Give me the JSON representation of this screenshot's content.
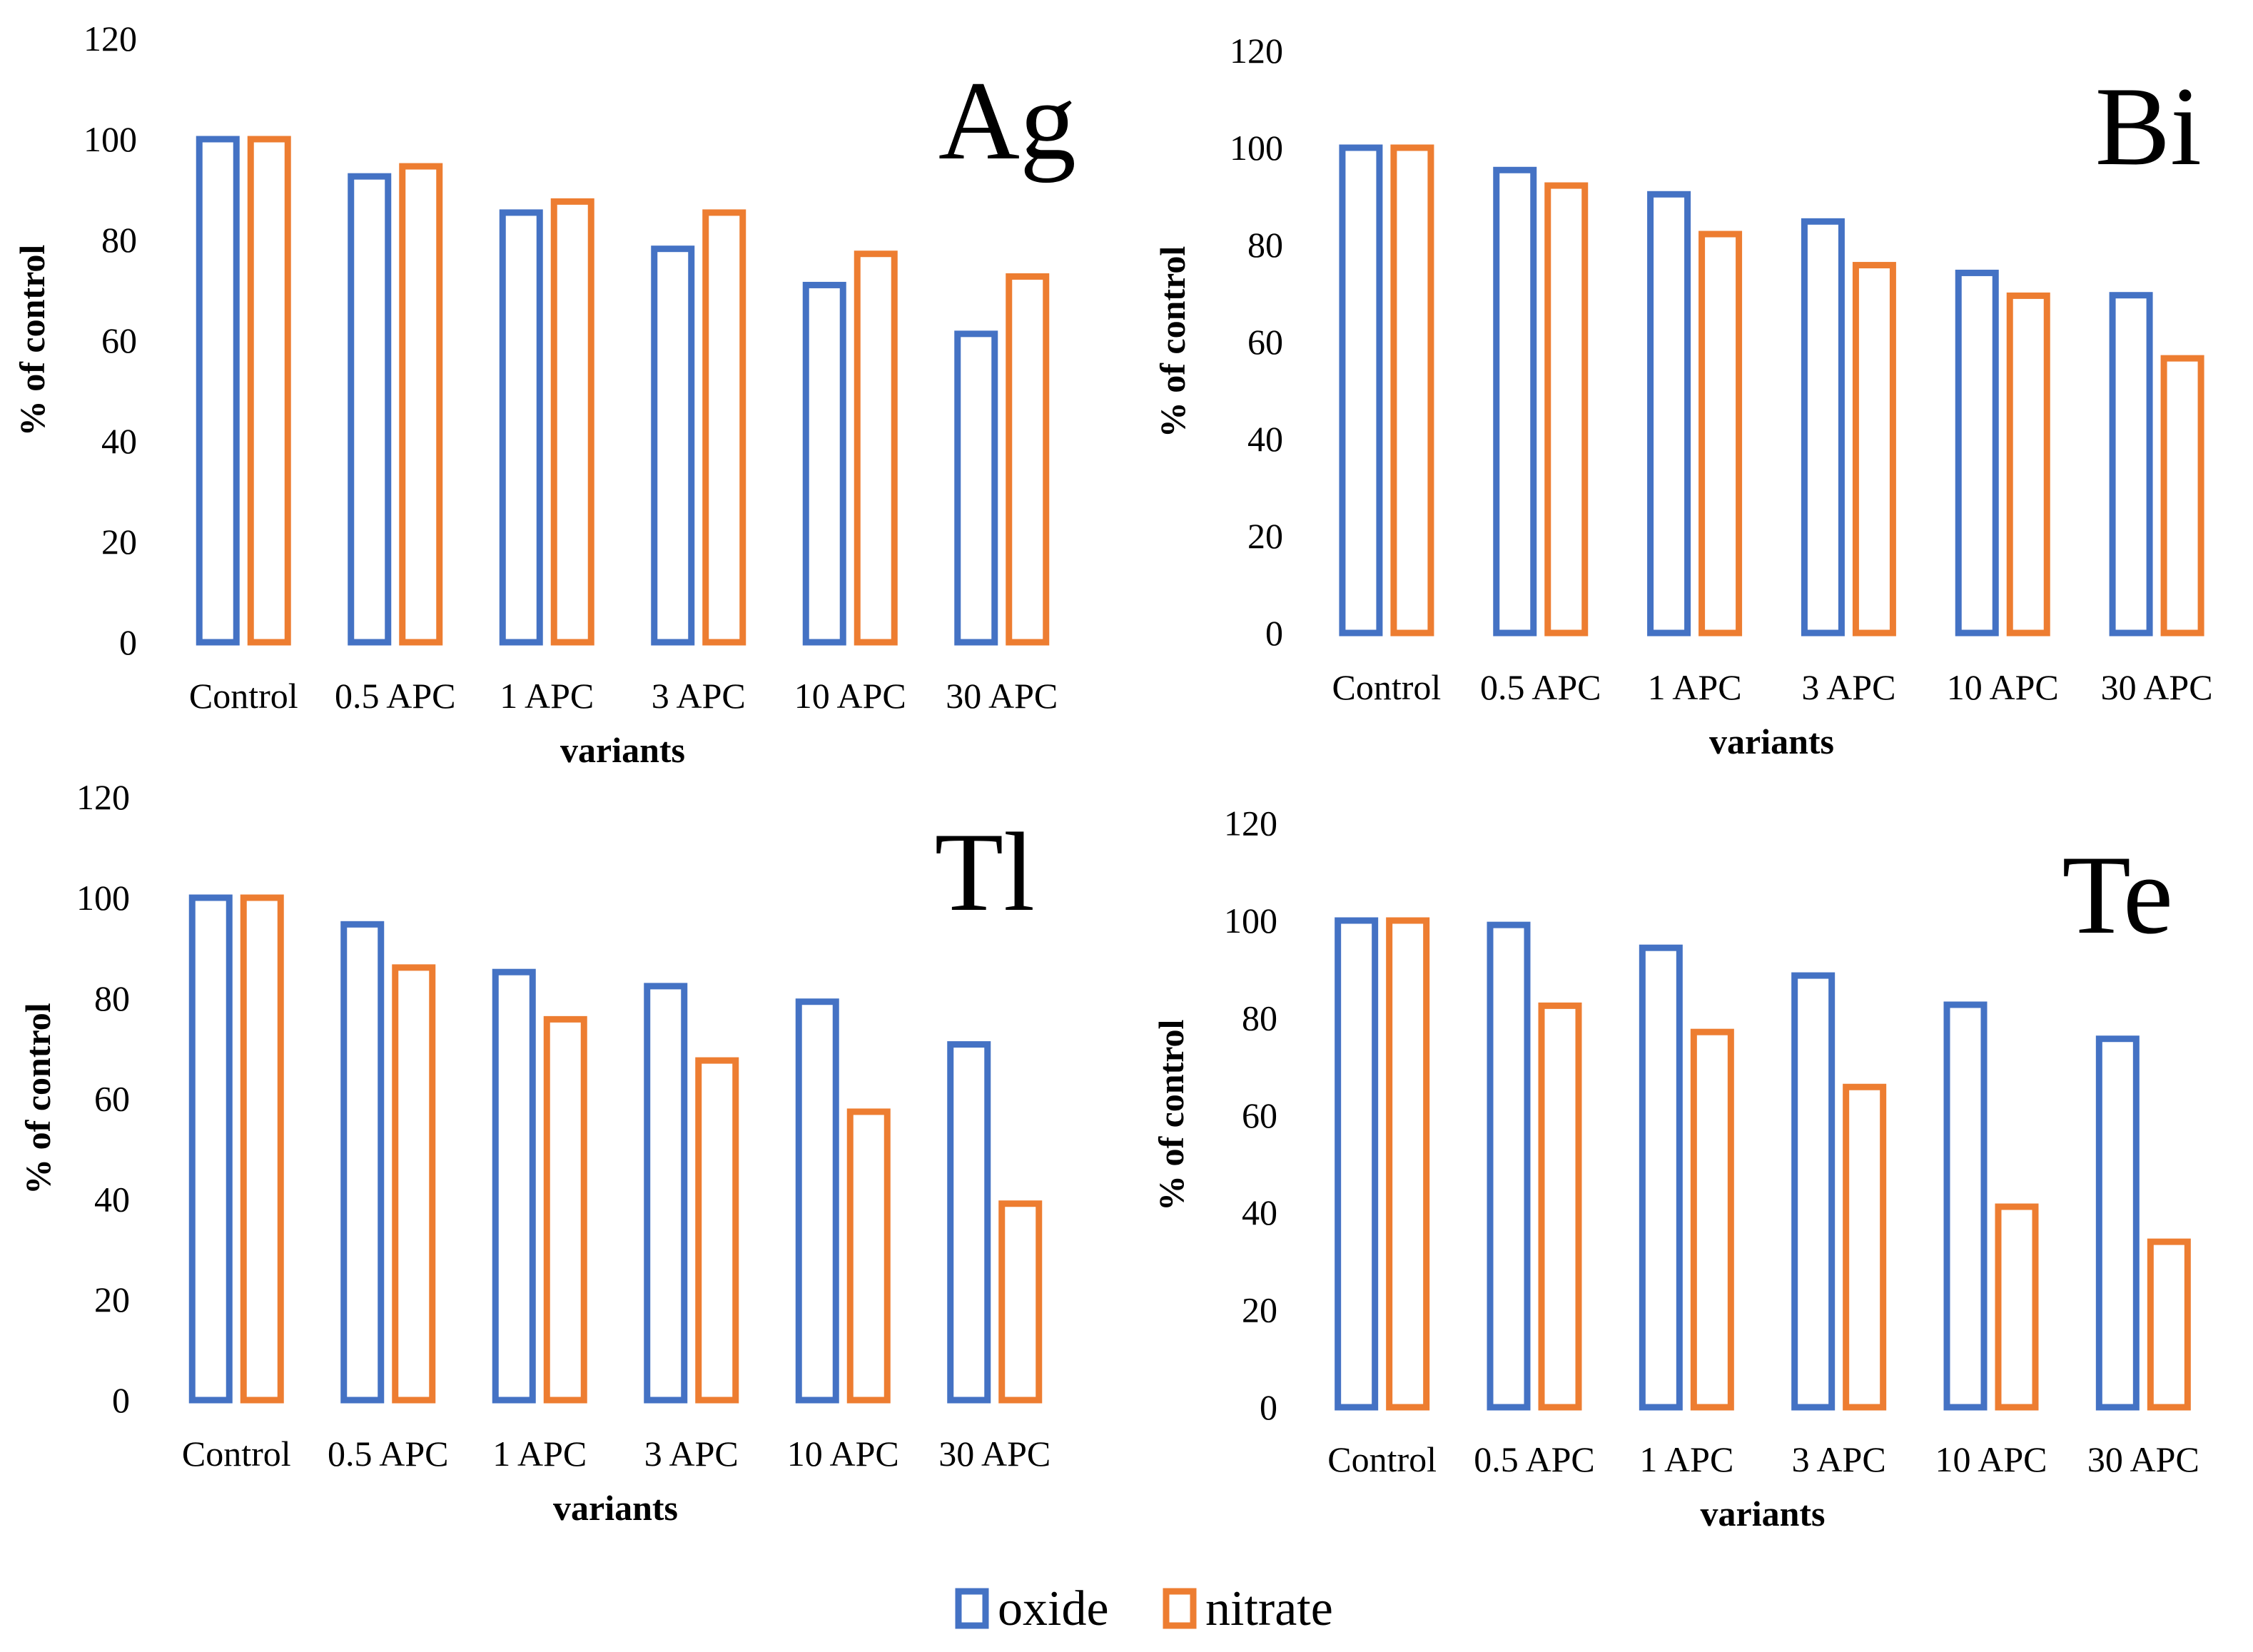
{
  "chart_data": [
    {
      "type": "bar",
      "title": "Ag",
      "categories": [
        "Control",
        "0.5 APC",
        "1 APC",
        "3 APC",
        "10 APC",
        "30 APC"
      ],
      "series": [
        {
          "name": "oxide",
          "values": [
            100,
            92.6,
            85.4,
            78.2,
            71,
            61.3
          ]
        },
        {
          "name": "nitrate",
          "values": [
            100,
            94.6,
            87.6,
            85.4,
            77.2,
            72.7
          ]
        }
      ],
      "xlabel": "variants",
      "ylabel": "% of control",
      "ylim": [
        0,
        120
      ],
      "yticks": [
        "0",
        "20",
        "40",
        "60",
        "80",
        "100",
        "120"
      ]
    },
    {
      "type": "bar",
      "title": "Bi",
      "categories": [
        "Control",
        "0.5 APC",
        "1 APC",
        "3 APC",
        "10 APC",
        "30 APC"
      ],
      "series": [
        {
          "name": "oxide",
          "values": [
            100,
            95.4,
            90.4,
            84.8,
            74.2,
            69.6
          ]
        },
        {
          "name": "nitrate",
          "values": [
            100,
            92.2,
            82.2,
            75.8,
            69.5,
            56.6
          ]
        }
      ],
      "xlabel": "variants",
      "ylabel": "% of control",
      "ylim": [
        0,
        120
      ],
      "yticks": [
        "0",
        "20",
        "40",
        "60",
        "80",
        "100",
        "120"
      ]
    },
    {
      "type": "bar",
      "title": "Tl",
      "categories": [
        "Control",
        "0.5 APC",
        "1 APC",
        "3 APC",
        "10 APC",
        "30 APC"
      ],
      "series": [
        {
          "name": "oxide",
          "values": [
            100,
            94.7,
            85.2,
            82.4,
            79.3,
            70.8
          ]
        },
        {
          "name": "nitrate",
          "values": [
            100,
            86.1,
            75.8,
            67.6,
            57.4,
            39.1
          ]
        }
      ],
      "xlabel": "variants",
      "ylabel": "% of control",
      "ylim": [
        0,
        120
      ],
      "yticks": [
        "0",
        "20",
        "40",
        "60",
        "80",
        "100",
        "120"
      ]
    },
    {
      "type": "bar",
      "title": "Te",
      "categories": [
        "Control",
        "0.5 APC",
        "1 APC",
        "3 APC",
        "10 APC",
        "30 APC"
      ],
      "series": [
        {
          "name": "oxide",
          "values": [
            100,
            99.1,
            94.4,
            88.7,
            82.7,
            75.7
          ]
        },
        {
          "name": "nitrate",
          "values": [
            100,
            82.5,
            77.1,
            65.8,
            41.2,
            34
          ]
        }
      ],
      "xlabel": "variants",
      "ylabel": "% of control",
      "ylim": [
        0,
        120
      ],
      "yticks": [
        "0",
        "20",
        "40",
        "60",
        "80",
        "100",
        "120"
      ]
    }
  ],
  "legend": {
    "position": "bottom-center",
    "items": [
      {
        "label": "oxide",
        "color": "#4472C4"
      },
      {
        "label": "nitrate",
        "color": "#ED7D31"
      }
    ]
  },
  "colors": {
    "oxide": "#4472C4",
    "nitrate": "#ED7D31"
  }
}
